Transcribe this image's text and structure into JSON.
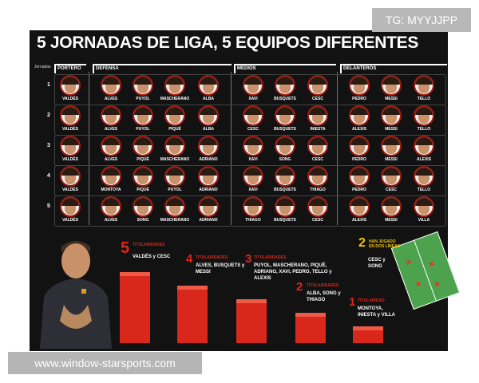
{
  "tag": "TG: MYYJJPP",
  "title": "5 JORNADAS DE LIGA, 5 EQUIPOS DIFERENTES",
  "watermark_url": "www.window-starsports.com",
  "jornadas_label": "Jornadas",
  "sections": {
    "portero": "PORTERO",
    "defensa": "DEFENSA",
    "medios": "MEDIOS",
    "delanteros": "DELANTEROS"
  },
  "rows": [
    {
      "num": "1",
      "players": [
        "VALDÉS",
        "ALVES",
        "PUYOL",
        "MASCHERANO",
        "ALBA",
        "XAVI",
        "BUSQUETS",
        "CESC",
        "PEDRO",
        "MESSI",
        "TELLO"
      ]
    },
    {
      "num": "2",
      "players": [
        "VALDÉS",
        "ALVES",
        "PUYOL",
        "PIQUÉ",
        "ALBA",
        "CESC",
        "BUSQUETS",
        "INIESTA",
        "ALEXIS",
        "MESSI",
        "TELLO"
      ]
    },
    {
      "num": "3",
      "players": [
        "VALDÉS",
        "ALVES",
        "PIQUÉ",
        "MASCHERANO",
        "ADRIANO",
        "XAVI",
        "SONG",
        "CESC",
        "PEDRO",
        "MESSI",
        "ALEXIS"
      ]
    },
    {
      "num": "4",
      "players": [
        "VALDÉS",
        "MONTOYA",
        "PIQUÉ",
        "PUYOL",
        "ADRIANO",
        "XAVI",
        "BUSQUETS",
        "THIAGO",
        "PEDRO",
        "CESC",
        "TELLO"
      ]
    },
    {
      "num": "5",
      "players": [
        "VALDÉS",
        "ALVES",
        "SONG",
        "MASCHERANO",
        "ADRIANO",
        "THIAGO",
        "BUSQUETS",
        "CESC",
        "ALEXIS",
        "MESSI",
        "VILLA"
      ]
    }
  ],
  "stats": [
    {
      "n": "5",
      "label": "TITULARIDADES",
      "names": "VALDÉS y CESC"
    },
    {
      "n": "4",
      "label": "TITULARIDADES",
      "names": "ALVES, BUSQUETS y MESSI"
    },
    {
      "n": "3",
      "label": "TITULARIDADES",
      "names": "PUYOL, MASCHERANO, PIQUÉ, ADRIANO, XAVI, PEDRO, TELLO y ALEXIS"
    },
    {
      "n": "2",
      "label": "TITULARIDADES",
      "names": "ALBA, SONG y THIAGO"
    },
    {
      "n": "1",
      "label": "TITULARIDAD",
      "names": "MONTOYA, INIESTA y VILLA"
    }
  ],
  "dual": {
    "n": "2",
    "label": "HAN JUGADO EN DOS LÍNEAS",
    "names": "CESC y SONG"
  },
  "colors": {
    "accent": "#d9271c",
    "background": "#121212",
    "highlight": "#f2c400"
  }
}
